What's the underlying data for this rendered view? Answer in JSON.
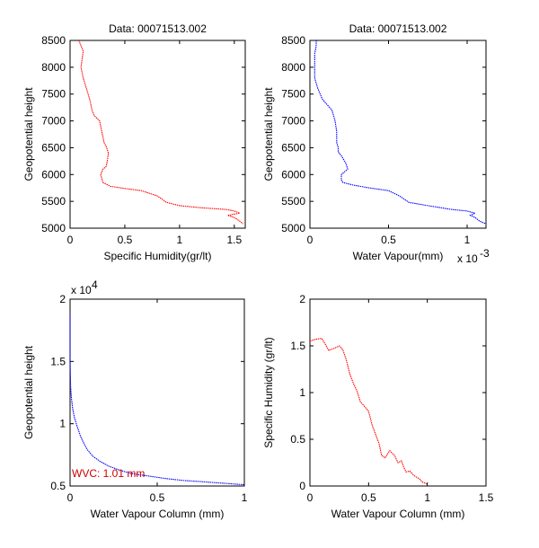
{
  "chart_data": [
    {
      "type": "line",
      "title": "Data: 00071513.002",
      "xlabel": "Specific Humidity(gr/lt)",
      "ylabel": "Geopotential height",
      "xlim": [
        0,
        1.6
      ],
      "ylim": [
        5000,
        8500
      ],
      "xticks": [
        0,
        0.5,
        1,
        1.5
      ],
      "xtick_labels": [
        "0",
        "0.5",
        "1",
        "1.5"
      ],
      "yticks": [
        5000,
        5500,
        6000,
        6500,
        7000,
        7500,
        8000,
        8500
      ],
      "ytick_labels": [
        "5000",
        "5500",
        "6000",
        "6500",
        "7000",
        "7500",
        "8000",
        "8500"
      ],
      "series": [
        {
          "color": "#ff0000",
          "x": [
            0.08,
            0.1,
            0.12,
            0.11,
            0.1,
            0.12,
            0.15,
            0.18,
            0.19,
            0.2,
            0.22,
            0.27,
            0.29,
            0.3,
            0.31,
            0.33,
            0.35,
            0.34,
            0.33,
            0.3,
            0.28,
            0.3,
            0.37,
            0.5,
            0.65,
            0.8,
            0.88,
            1.0,
            1.2,
            1.42,
            1.5,
            1.55,
            1.44,
            1.5,
            1.55,
            1.58
          ],
          "y": [
            8500,
            8400,
            8300,
            8150,
            8000,
            7800,
            7600,
            7400,
            7300,
            7200,
            7100,
            7000,
            6800,
            6700,
            6600,
            6520,
            6400,
            6250,
            6150,
            6100,
            6000,
            5850,
            5780,
            5740,
            5700,
            5600,
            5480,
            5420,
            5380,
            5350,
            5320,
            5280,
            5240,
            5200,
            5130,
            5080
          ]
        }
      ]
    },
    {
      "type": "line",
      "title": "Data: 00071513.002",
      "xlabel": "Water Vapour(mm)",
      "ylabel": "Geopotential height",
      "x_multiplier_label": "x 10",
      "x_multiplier_exp": "-3",
      "xlim": [
        0,
        1.12
      ],
      "ylim": [
        5000,
        8500
      ],
      "xticks": [
        0,
        0.5,
        1
      ],
      "xtick_labels": [
        "0",
        "0.5",
        "1"
      ],
      "yticks": [
        5000,
        5500,
        6000,
        6500,
        7000,
        7500,
        8000,
        8500
      ],
      "ytick_labels": [
        "5000",
        "5500",
        "6000",
        "6500",
        "7000",
        "7500",
        "8000",
        "8500"
      ],
      "series": [
        {
          "color": "#0000ff",
          "x": [
            0.04,
            0.04,
            0.03,
            0.03,
            0.03,
            0.05,
            0.08,
            0.11,
            0.14,
            0.15,
            0.16,
            0.17,
            0.17,
            0.18,
            0.18,
            0.2,
            0.23,
            0.24,
            0.22,
            0.2,
            0.2,
            0.21,
            0.28,
            0.38,
            0.5,
            0.57,
            0.63,
            0.75,
            0.9,
            1.0,
            1.05,
            1.02,
            1.05,
            1.08,
            1.12
          ],
          "y": [
            8500,
            8400,
            8250,
            8000,
            7800,
            7600,
            7400,
            7300,
            7200,
            7100,
            7000,
            6800,
            6600,
            6500,
            6420,
            6350,
            6200,
            6100,
            6050,
            6000,
            5900,
            5850,
            5800,
            5750,
            5700,
            5600,
            5480,
            5420,
            5350,
            5320,
            5280,
            5240,
            5200,
            5130,
            5080
          ]
        }
      ]
    },
    {
      "type": "line",
      "title": "",
      "xlabel": "Water Vapour Column (mm)",
      "ylabel": "Geopotential height",
      "y_multiplier_label": "x 10",
      "y_multiplier_exp": "4",
      "annotation": "WVC: 1.01 mm",
      "annotation_color": "#cc0000",
      "xlim": [
        0,
        1
      ],
      "ylim": [
        0.5,
        2
      ],
      "xticks": [
        0,
        0.5,
        1
      ],
      "xtick_labels": [
        "0",
        "0.5",
        "1"
      ],
      "yticks": [
        0.5,
        1,
        1.5,
        2
      ],
      "ytick_labels": [
        "0.5",
        "1",
        "1.5",
        "2"
      ],
      "series": [
        {
          "color": "#0000ff",
          "x": [
            0,
            0,
            0.003,
            0.008,
            0.015,
            0.025,
            0.04,
            0.06,
            0.08,
            0.1,
            0.13,
            0.17,
            0.22,
            0.28,
            0.35,
            0.45,
            0.55,
            0.65,
            0.75,
            0.85,
            0.95,
            1.0
          ],
          "y": [
            1.88,
            1.5,
            1.3,
            1.2,
            1.12,
            1.05,
            0.98,
            0.9,
            0.84,
            0.79,
            0.74,
            0.7,
            0.66,
            0.63,
            0.6,
            0.58,
            0.56,
            0.545,
            0.535,
            0.525,
            0.515,
            0.51
          ]
        }
      ]
    },
    {
      "type": "line",
      "title": "",
      "xlabel": "Water Vapour Column (mm)",
      "ylabel": "Specific Humidity (gr/lt)",
      "xlim": [
        0,
        1.5
      ],
      "ylim": [
        0,
        2
      ],
      "xticks": [
        0,
        0.5,
        1,
        1.5
      ],
      "xtick_labels": [
        "0",
        "0.5",
        "1",
        "1.5"
      ],
      "yticks": [
        0,
        0.5,
        1,
        1.5,
        2
      ],
      "ytick_labels": [
        "0",
        "0.5",
        "1",
        "1.5",
        "2"
      ],
      "series": [
        {
          "color": "#ff0000",
          "x": [
            0,
            0.02,
            0.05,
            0.1,
            0.13,
            0.16,
            0.2,
            0.25,
            0.28,
            0.31,
            0.34,
            0.37,
            0.4,
            0.43,
            0.46,
            0.5,
            0.53,
            0.56,
            0.59,
            0.61,
            0.64,
            0.68,
            0.7,
            0.72,
            0.75,
            0.78,
            0.8,
            0.82,
            0.85,
            0.88,
            0.9,
            0.93,
            0.96,
            1.0
          ],
          "y": [
            1.55,
            1.56,
            1.57,
            1.58,
            1.52,
            1.45,
            1.47,
            1.5,
            1.46,
            1.35,
            1.2,
            1.1,
            1.02,
            0.9,
            0.86,
            0.8,
            0.65,
            0.55,
            0.45,
            0.33,
            0.3,
            0.38,
            0.35,
            0.33,
            0.25,
            0.27,
            0.2,
            0.15,
            0.16,
            0.12,
            0.1,
            0.08,
            0.04,
            0.02
          ]
        }
      ]
    }
  ]
}
